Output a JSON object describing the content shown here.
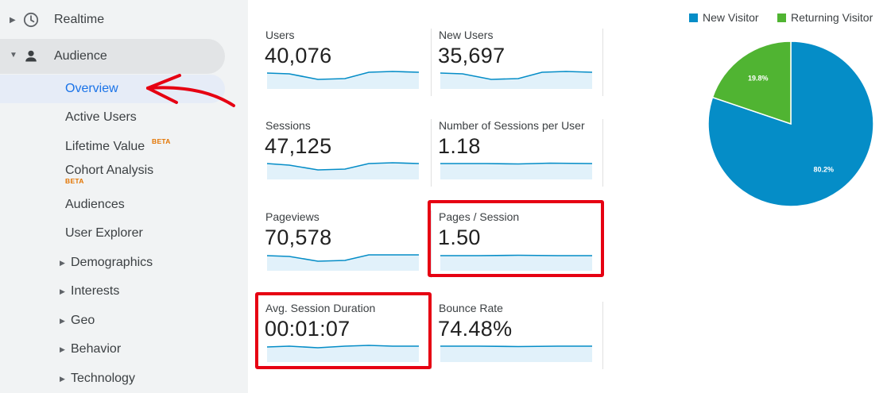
{
  "sidebar": {
    "realtime_label": "Realtime",
    "audience_label": "Audience",
    "items": [
      {
        "label": "Overview",
        "active": true
      },
      {
        "label": "Active Users"
      },
      {
        "label": "Lifetime Value",
        "badge": "BETA"
      },
      {
        "label": "Cohort Analysis",
        "badge": "BETA"
      },
      {
        "label": "Audiences"
      },
      {
        "label": "User Explorer"
      },
      {
        "label": "Demographics",
        "expandable": true
      },
      {
        "label": "Interests",
        "expandable": true
      },
      {
        "label": "Geo",
        "expandable": true
      },
      {
        "label": "Behavior",
        "expandable": true
      },
      {
        "label": "Technology",
        "expandable": true
      }
    ]
  },
  "metrics": [
    {
      "label": "Users",
      "value": "40,076",
      "highlighted": false
    },
    {
      "label": "New Users",
      "value": "35,697",
      "highlighted": false
    },
    {
      "label": "Sessions",
      "value": "47,125",
      "highlighted": false
    },
    {
      "label": "Number of Sessions per User",
      "value": "1.18",
      "highlighted": false
    },
    {
      "label": "Pageviews",
      "value": "70,578",
      "highlighted": false
    },
    {
      "label": "Pages / Session",
      "value": "1.50",
      "highlighted": true
    },
    {
      "label": "Avg. Session Duration",
      "value": "00:01:07",
      "highlighted": true
    },
    {
      "label": "Bounce Rate",
      "value": "74.48%",
      "highlighted": false
    }
  ],
  "legend": [
    {
      "label": "New Visitor",
      "color": "#058dc7"
    },
    {
      "label": "Returning Visitor",
      "color": "#50b432"
    }
  ],
  "chart_data": {
    "type": "pie",
    "categories": [
      "New Visitor",
      "Returning Visitor"
    ],
    "values": [
      80.2,
      19.8
    ],
    "data_labels": [
      "80.2%",
      "19.8%"
    ],
    "colors": [
      "#058dc7",
      "#50b432"
    ],
    "legend_position": "top"
  },
  "colors": {
    "accent": "#1a73e8",
    "sparkline_line": "#058dc7",
    "sparkline_fill": "#e1f1fa",
    "highlight_box": "#e60012",
    "annotation_arrow": "#e60012",
    "beta_badge": "#e37400"
  },
  "icons": {
    "realtime": "clock-icon",
    "audience": "person-icon",
    "annotation": "red-arrow-annotation"
  }
}
